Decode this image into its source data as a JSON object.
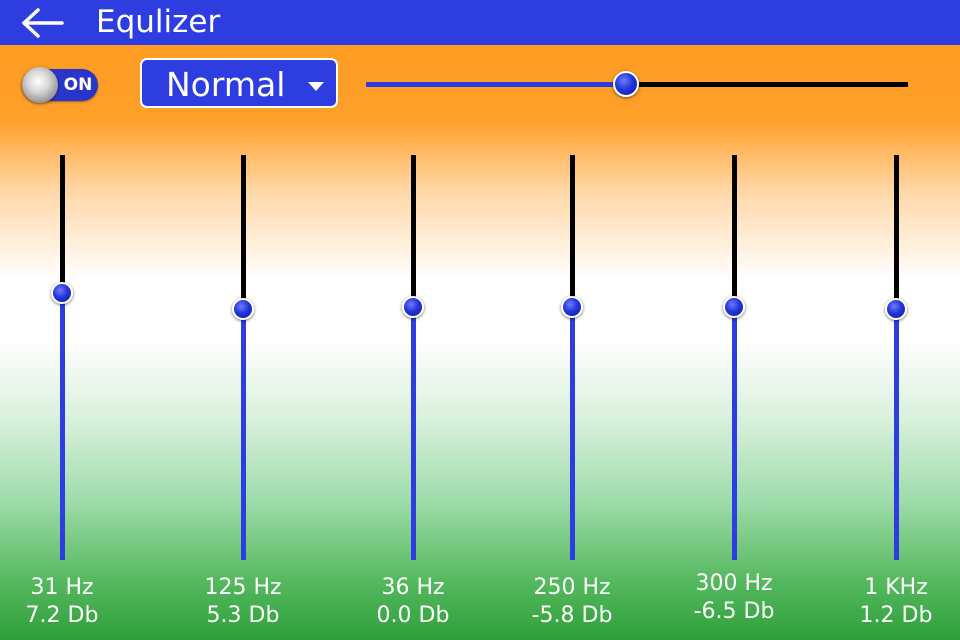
{
  "header": {
    "title": "Equlizer",
    "back_icon": "arrow-left-icon"
  },
  "toggle": {
    "label": "ON",
    "state": "on"
  },
  "preset": {
    "value": "Normal",
    "caret_icon": "caret-down-icon"
  },
  "master_slider": {
    "level": 0.48
  },
  "bands": [
    {
      "freq": "31 Hz",
      "gain": "7.2 Db",
      "level": 0.66
    },
    {
      "freq": "125 Hz",
      "gain": "5.3 Db",
      "level": 0.62
    },
    {
      "freq": "36 Hz",
      "gain": "0.0 Db",
      "level": 0.625
    },
    {
      "freq": "250 Hz",
      "gain": "-5.8 Db",
      "level": 0.625
    },
    {
      "freq": "300 Hz",
      "gain": "-6.5 Db",
      "level": 0.625
    },
    {
      "freq": "1 KHz",
      "gain": "1.2 Db",
      "level": 0.62
    }
  ],
  "colors": {
    "accent": "#2d3de0",
    "orange": "#ff9a1f",
    "green": "#2e9f39"
  }
}
